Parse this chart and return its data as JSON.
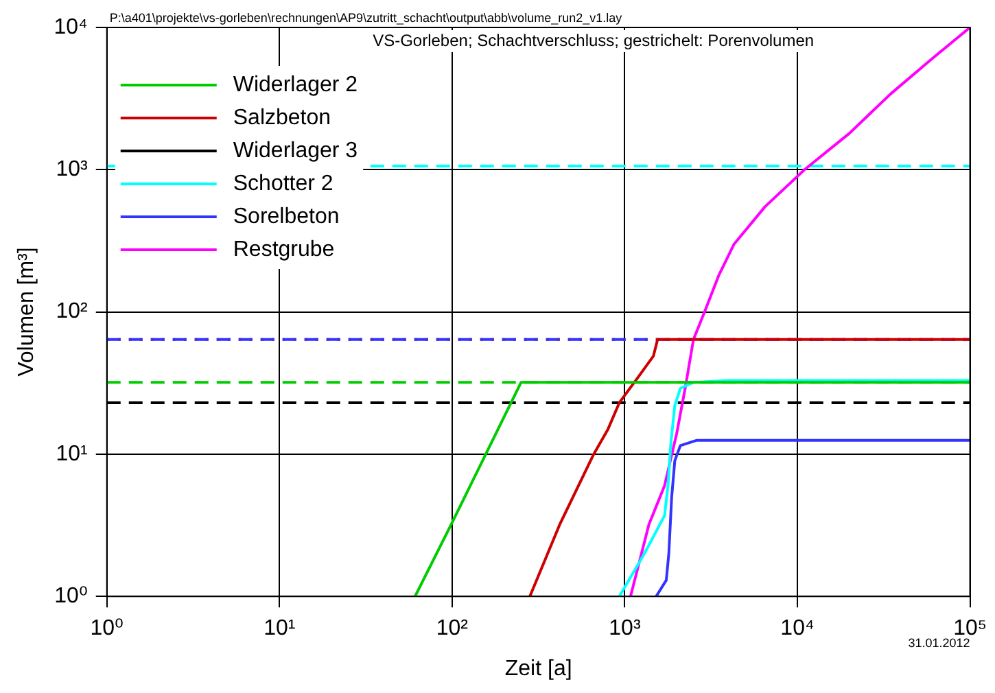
{
  "chart_data": {
    "type": "line",
    "title": "VS-Gorleben; Schachtverschluss; gestrichelt: Porenvolumen",
    "xlabel": "Zeit [a]",
    "ylabel": "Volumen [m³]",
    "annotations": [
      "P:\\a401\\projekte\\vs-gorleben\\rechnungen\\AP9\\zutritt_schacht\\output\\abb\\volume_run2_v1.lay",
      "31.01.2012"
    ],
    "log": "xy",
    "grid": true,
    "legend": "top left",
    "marker": "none",
    "line_style": "solid",
    "xlim": [
      1,
      100000
    ],
    "ylim": [
      1,
      10000
    ],
    "xticks": [
      {
        "value": 1,
        "label": "10⁰"
      },
      {
        "value": 10,
        "label": "10¹"
      },
      {
        "value": 100,
        "label": "10²"
      },
      {
        "value": 1000,
        "label": "10³"
      },
      {
        "value": 10000,
        "label": "10⁴"
      },
      {
        "value": 100000,
        "label": "10⁵"
      }
    ],
    "yticks": [
      {
        "value": 1,
        "label": "10⁰"
      },
      {
        "value": 10,
        "label": "10¹"
      },
      {
        "value": 100,
        "label": "10²"
      },
      {
        "value": 1000,
        "label": "10³"
      },
      {
        "value": 10000,
        "label": "10⁴"
      }
    ],
    "series": [
      {
        "name": "Widerlager 2",
        "color": "#00cc00",
        "x": [
          61,
          100,
          251,
          100000
        ],
        "values": [
          1,
          3.3,
          32,
          32
        ]
      },
      {
        "name": "Salzbeton",
        "color": "#cc0000",
        "x": [
          282,
          420,
          661,
          800,
          930,
          1200,
          1466,
          1550,
          100000
        ],
        "values": [
          1,
          3.2,
          10,
          15,
          23,
          35,
          49,
          64,
          64
        ]
      },
      {
        "name": "Widerlager 3",
        "color": "#000000"
      },
      {
        "name": "Schotter 2",
        "color": "#00ffff",
        "x": [
          930,
          1300,
          1700,
          1780,
          1850,
          1950,
          2100,
          2500,
          4000,
          100000
        ],
        "values": [
          1,
          2,
          3.7,
          6,
          12,
          22,
          29,
          32,
          33,
          33
        ]
      },
      {
        "name": "Sorelbeton",
        "color": "#3333ff",
        "x": [
          1520,
          1740,
          1800,
          1870,
          1950,
          2100,
          2600,
          100000
        ],
        "values": [
          1,
          1.3,
          2,
          5,
          9,
          11.5,
          12.5,
          12.5
        ]
      },
      {
        "name": "Restgrube",
        "color": "#ff00ff",
        "x": [
          1080,
          1380,
          1700,
          2000,
          2250,
          2500,
          2900,
          3500,
          4300,
          6500,
          11000,
          20000,
          34600,
          60000,
          100000
        ],
        "values": [
          1,
          3.2,
          6,
          14,
          30,
          64,
          100,
          180,
          300,
          550,
          1000,
          1800,
          3400,
          6000,
          10000
        ]
      }
    ],
    "ref_lines": [
      {
        "axis": "y",
        "value": 1060,
        "color": "#00ffff",
        "line_style": "dashed"
      },
      {
        "axis": "y",
        "value": 64,
        "color": "#cc0000",
        "line_style": "dotted"
      },
      {
        "axis": "y",
        "value": 64,
        "color": "#3333ff",
        "line_style": "dashed"
      },
      {
        "axis": "y",
        "value": 32,
        "color": "#00cc00",
        "line_style": "dashed"
      },
      {
        "axis": "y",
        "value": 23,
        "color": "#000000",
        "line_style": "dashed"
      }
    ]
  }
}
